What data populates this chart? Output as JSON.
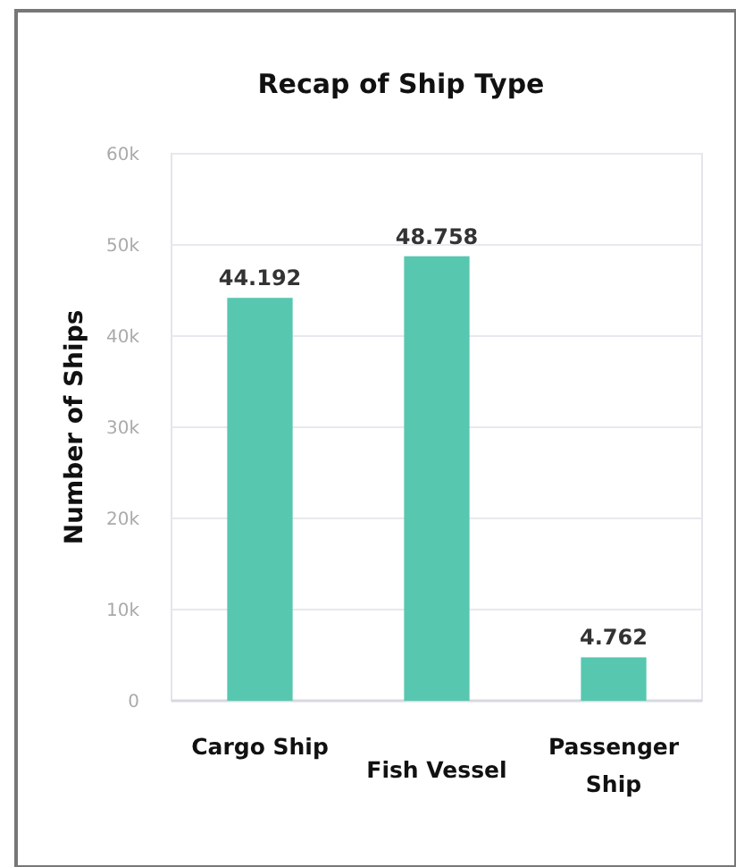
{
  "chart_data": {
    "type": "bar",
    "title": "Recap of Ship Type",
    "ylabel": "Number of Ships",
    "categories": [
      "Cargo Ship",
      "Fish Vessel",
      "Passenger Ship"
    ],
    "values": [
      44192,
      48758,
      4762
    ],
    "value_labels": [
      "44.192",
      "48.758",
      "4.762"
    ],
    "color": "#57c7b0",
    "ylim": [
      0,
      60000
    ],
    "yticks": [
      {
        "value": 0,
        "label": "0"
      },
      {
        "value": 10000,
        "label": "10k"
      },
      {
        "value": 20000,
        "label": "20k"
      },
      {
        "value": 30000,
        "label": "30k"
      },
      {
        "value": 40000,
        "label": "40k"
      },
      {
        "value": 50000,
        "label": "50k"
      },
      {
        "value": 60000,
        "label": "60k"
      }
    ],
    "grid": "y"
  }
}
